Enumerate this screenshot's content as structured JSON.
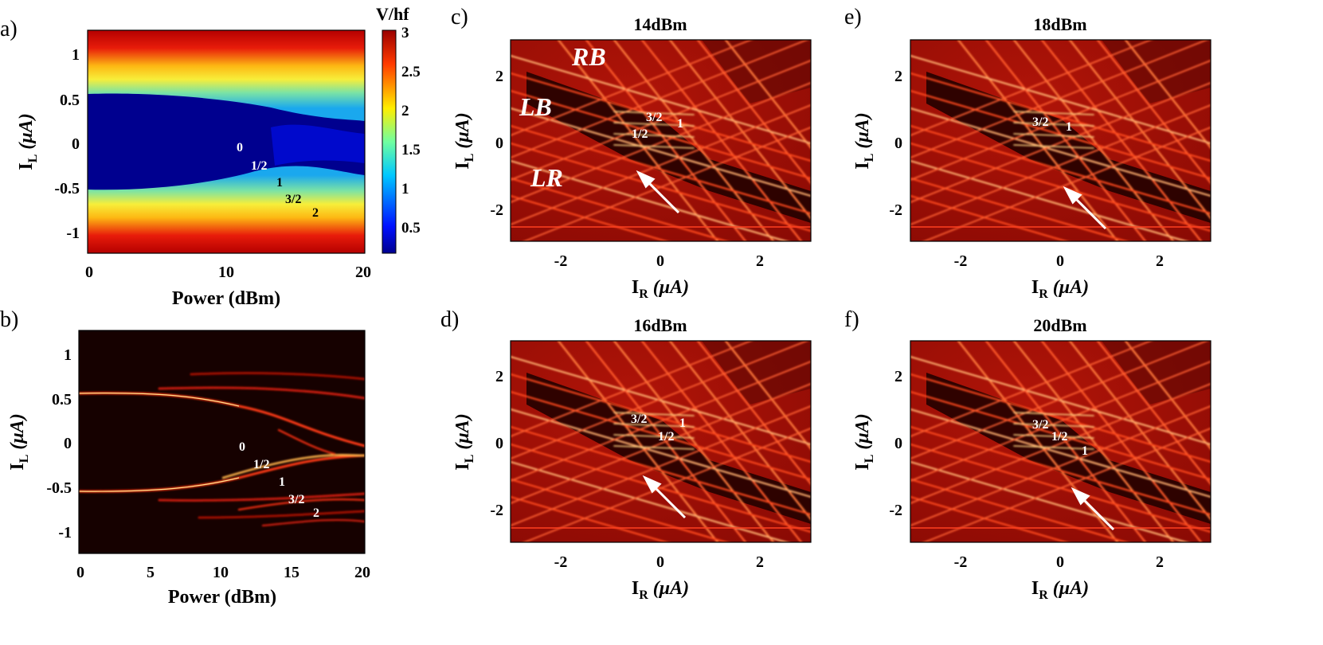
{
  "figure": {
    "panels": [
      {
        "id": "a",
        "label": "a)",
        "xlabel": "Power (dBm)",
        "ylabel": "I",
        "ylabel_sub": "L",
        "ylabel_unit": "(μA)",
        "xticks": [
          "0",
          "10",
          "20"
        ],
        "yticks": [
          "1",
          "0.5",
          "0",
          "-0.5",
          "-1"
        ],
        "colorbar": {
          "title": "V/hf",
          "ticks": [
            "3",
            "2.5",
            "2",
            "1.5",
            "1",
            "0.5"
          ]
        },
        "step_labels": [
          "0",
          "1/2",
          "1",
          "3/2",
          "2"
        ]
      },
      {
        "id": "b",
        "label": "b)",
        "xlabel": "Power (dBm)",
        "ylabel": "I",
        "ylabel_sub": "L",
        "ylabel_unit": "(μA)",
        "xticks": [
          "0",
          "5",
          "10",
          "15",
          "20"
        ],
        "yticks": [
          "1",
          "0.5",
          "0",
          "-0.5",
          "-1"
        ],
        "step_labels": [
          "0",
          "1/2",
          "1",
          "3/2",
          "2"
        ]
      },
      {
        "id": "c",
        "label": "c)",
        "title": "14dBm",
        "xlabel": "I",
        "xlabel_sub": "R",
        "xlabel_unit": "(μA)",
        "ylabel": "I",
        "ylabel_sub": "L",
        "ylabel_unit": "(μA)",
        "xticks": [
          "-2",
          "0",
          "2"
        ],
        "yticks": [
          "2",
          "0",
          "-2"
        ],
        "region_labels": [
          "RB",
          "LB",
          "LR"
        ],
        "step_labels": [
          "3/2",
          "1",
          "1/2"
        ]
      },
      {
        "id": "d",
        "label": "d)",
        "title": "16dBm",
        "xlabel": "I",
        "xlabel_sub": "R",
        "xlabel_unit": "(μA)",
        "ylabel": "I",
        "ylabel_sub": "L",
        "ylabel_unit": "(μA)",
        "xticks": [
          "-2",
          "0",
          "2"
        ],
        "yticks": [
          "2",
          "0",
          "-2"
        ],
        "step_labels": [
          "3/2",
          "1",
          "1/2"
        ]
      },
      {
        "id": "e",
        "label": "e)",
        "title": "18dBm",
        "xlabel": "I",
        "xlabel_sub": "R",
        "xlabel_unit": "(μA)",
        "ylabel": "I",
        "ylabel_sub": "L",
        "ylabel_unit": "(μA)",
        "xticks": [
          "-2",
          "0",
          "2"
        ],
        "yticks": [
          "2",
          "0",
          "-2"
        ],
        "step_labels": [
          "3/2",
          "1"
        ]
      },
      {
        "id": "f",
        "label": "f)",
        "title": "20dBm",
        "xlabel": "I",
        "xlabel_sub": "R",
        "xlabel_unit": "(μA)",
        "ylabel": "I",
        "ylabel_sub": "L",
        "ylabel_unit": "(μA)",
        "xticks": [
          "-2",
          "0",
          "2"
        ],
        "yticks": [
          "2",
          "0",
          "-2"
        ],
        "step_labels": [
          "3/2",
          "1/2",
          "1"
        ]
      }
    ]
  },
  "chart_data": [
    {
      "type": "heatmap",
      "title": "",
      "xlabel": "Power (dBm)",
      "ylabel": "I_L (μA)",
      "xlim": [
        0,
        20
      ],
      "ylim": [
        -1.2,
        1.2
      ],
      "colorbar_label": "V/hf",
      "clim": [
        0.1,
        3
      ],
      "annotations": [
        "0",
        "1/2",
        "1",
        "3/2",
        "2"
      ]
    },
    {
      "type": "heatmap",
      "title": "",
      "xlabel": "Power (dBm)",
      "ylabel": "I_L (μA)",
      "xlim": [
        0,
        20
      ],
      "ylim": [
        -1.2,
        1.2
      ],
      "annotations": [
        "0",
        "1/2",
        "1",
        "3/2",
        "2"
      ]
    },
    {
      "type": "heatmap",
      "title": "14dBm",
      "xlabel": "I_R (μA)",
      "ylabel": "I_L (μA)",
      "xlim": [
        -3,
        3
      ],
      "ylim": [
        -3,
        3
      ]
    },
    {
      "type": "heatmap",
      "title": "16dBm",
      "xlabel": "I_R (μA)",
      "ylabel": "I_L (μA)",
      "xlim": [
        -3,
        3
      ],
      "ylim": [
        -3,
        3
      ]
    },
    {
      "type": "heatmap",
      "title": "18dBm",
      "xlabel": "I_R (μA)",
      "ylabel": "I_L (μA)",
      "xlim": [
        -3,
        3
      ],
      "ylim": [
        -3,
        3
      ]
    },
    {
      "type": "heatmap",
      "title": "20dBm",
      "xlabel": "I_R (μA)",
      "ylabel": "I_L (μA)",
      "xlim": [
        -3,
        3
      ],
      "ylim": [
        -3,
        3
      ]
    }
  ]
}
